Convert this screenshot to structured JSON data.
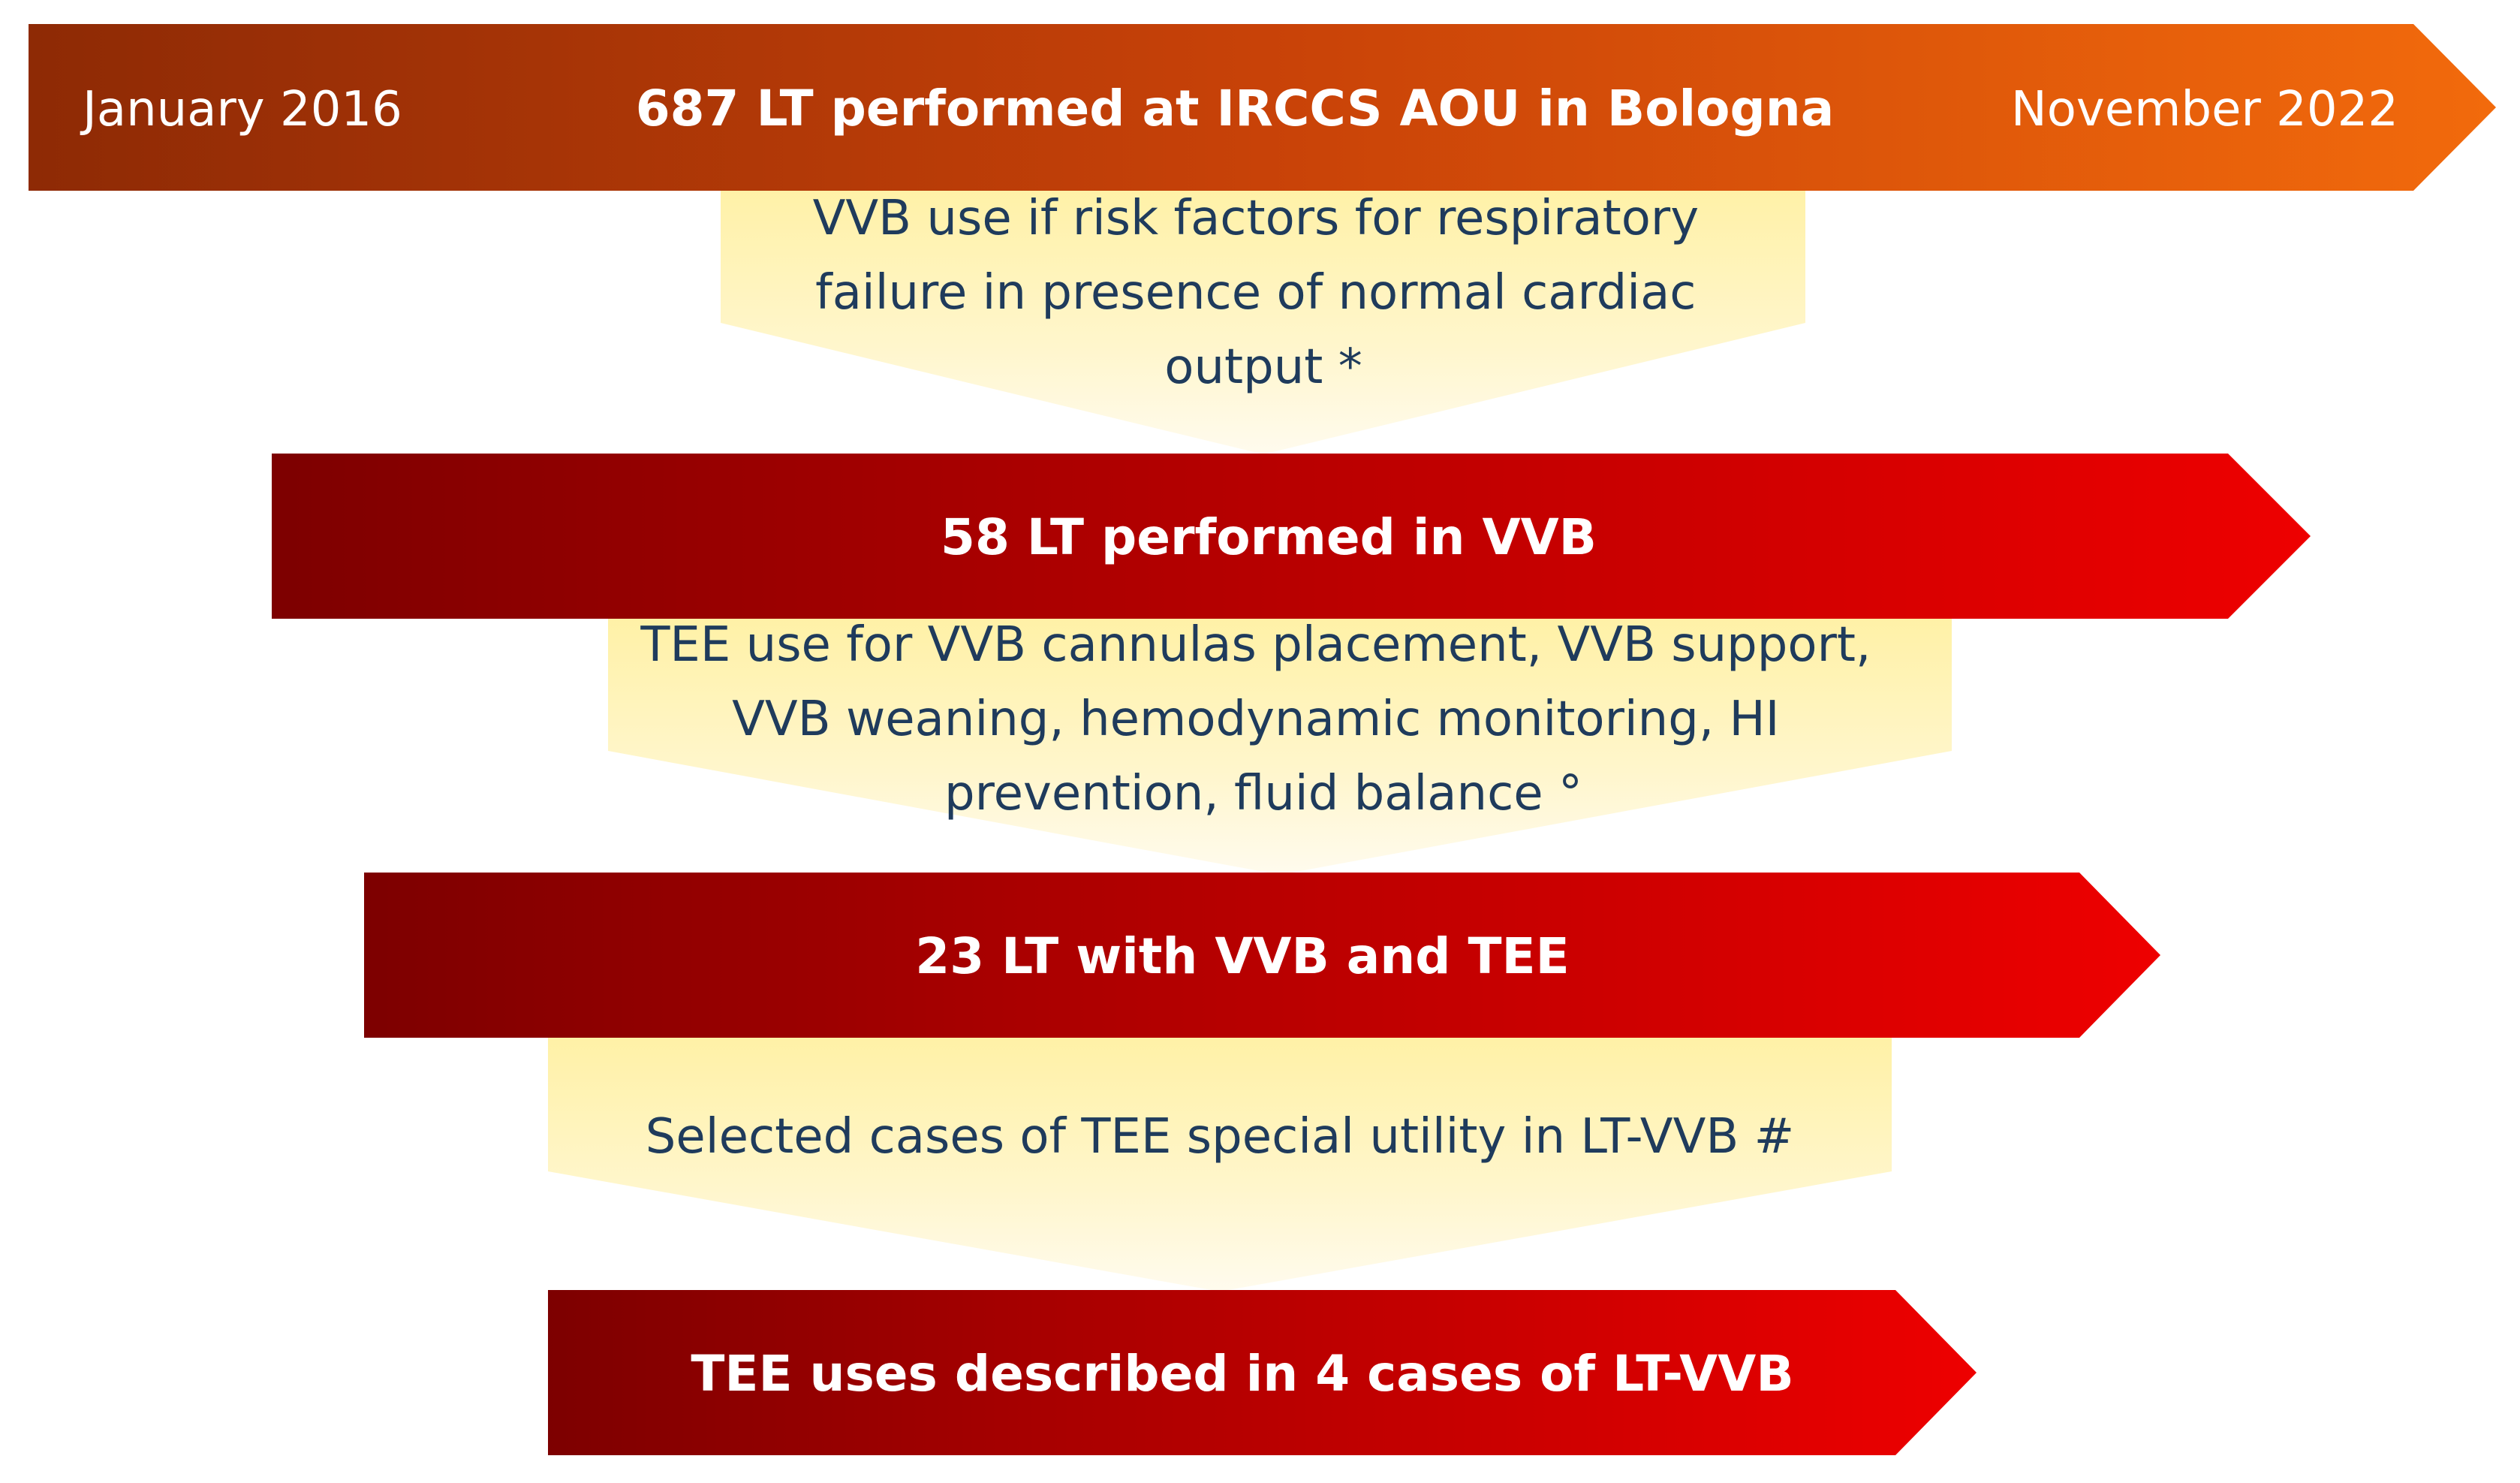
{
  "timeline": {
    "start_label": "January 2016",
    "title": "687 LT performed  at IRCCS AOU in Bologna",
    "end_label": "November 2022"
  },
  "stages": [
    {
      "criteria_lines": [
        "VVB use if risk factors for respiratory",
        "failure in presence of normal cardiac",
        "output *"
      ],
      "result": "58 LT performed  in VVB"
    },
    {
      "criteria_lines": [
        "TEE use for VVB cannulas placement, VVB support,",
        "VVB weaning, hemodynamic monitoring, HI",
        "prevention, fluid balance °"
      ],
      "result": "23 LT with VVB and TEE"
    },
    {
      "criteria_lines": [
        "Selected cases of TEE special utility in LT-VVB #"
      ],
      "result": "TEE uses described in 4 cases of LT-VVB"
    }
  ],
  "colors": {
    "timeline_start": "#8e2a05",
    "timeline_end": "#f26a0c",
    "stage_start": "#7d0000",
    "stage_end": "#ee0000",
    "funnel_top": "#fff1a6",
    "funnel_bottom": "#fffbee",
    "criteria_text": "#1f3b5c"
  }
}
